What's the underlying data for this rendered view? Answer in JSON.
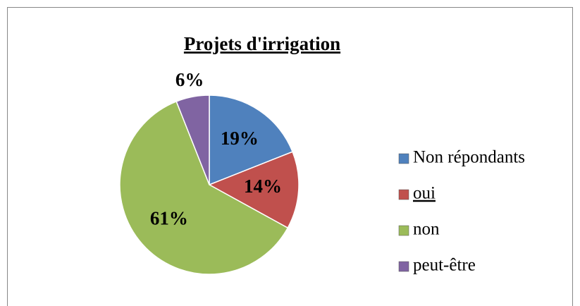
{
  "chart_data": {
    "type": "pie",
    "title": "Projets d'irrigation",
    "categories": [
      "Non répondants",
      "oui",
      "non",
      "peut-être"
    ],
    "values": [
      19,
      14,
      61,
      6
    ],
    "value_labels": [
      "19%",
      "14%",
      "61%",
      "6%"
    ],
    "colors": [
      "#4f81bd",
      "#c0504d",
      "#9bbb59",
      "#8064a2"
    ],
    "legend": "right"
  }
}
